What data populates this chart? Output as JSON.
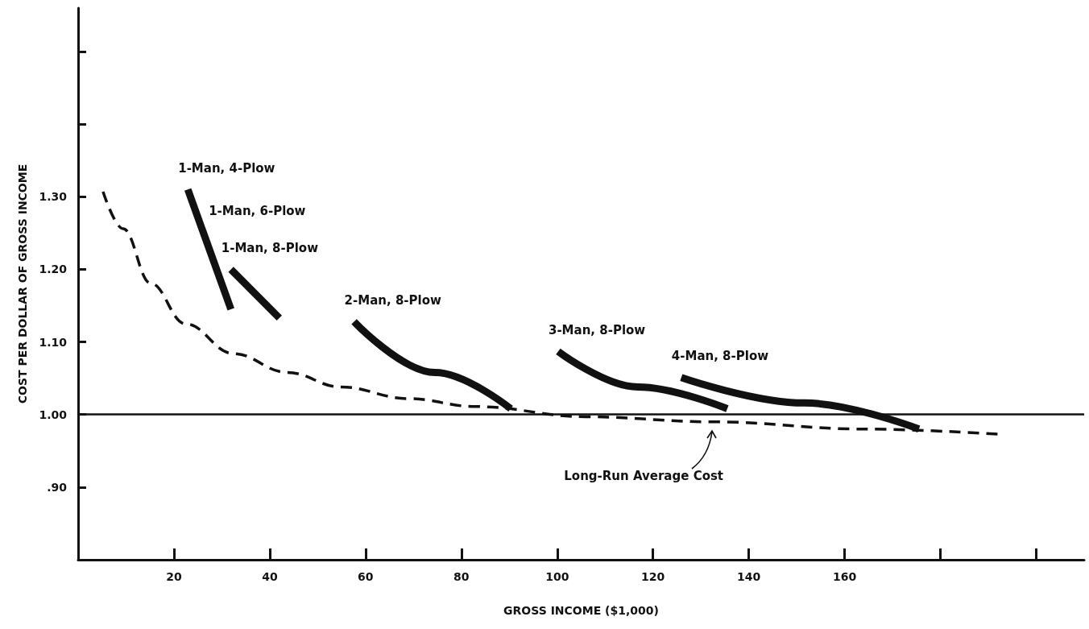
{
  "chart_data": {
    "type": "line",
    "xlabel": "GROSS INCOME ($1,000)",
    "ylabel": "COST PER DOLLAR OF GROSS INCOME",
    "xlim": [
      0,
      210
    ],
    "xticks": [
      20,
      40,
      60,
      80,
      100,
      120,
      140,
      160,
      {
        "value": 180,
        "label": null
      },
      {
        "value": 200,
        "label": null
      }
    ],
    "ylim": [
      0.8,
      1.56
    ],
    "yticks": [
      {
        "value": 0.9,
        "label": ".90"
      },
      {
        "value": 1.0,
        "label": "1.00"
      },
      {
        "value": 1.1,
        "label": "1.10"
      },
      {
        "value": 1.2,
        "label": "1.20"
      },
      {
        "value": 1.3,
        "label": "1.30"
      },
      {
        "value": 1.4,
        "label": null
      },
      {
        "value": 1.5,
        "label": null
      }
    ],
    "grid": false,
    "legend": false,
    "marker": "none",
    "series": [
      {
        "name": "1-Man, 4-Plow",
        "color": "#111111",
        "line_style": "solid",
        "x": [
          22.9,
          31.9
        ],
        "values": [
          1.31,
          1.145
        ]
      },
      {
        "name": "1-Man, 8-Plow",
        "color": "#111111",
        "line_style": "solid",
        "x": [
          31.9,
          42.0
        ],
        "values": [
          1.2,
          1.133
        ]
      },
      {
        "name": "2-Man, 8-Plow",
        "color": "#111111",
        "line_style": "solid",
        "x": [
          57.6,
          74.5,
          90.3
        ],
        "values": [
          1.128,
          1.058,
          1.008
        ]
      },
      {
        "name": "3-Man, 8-Plow",
        "color": "#111111",
        "line_style": "solid",
        "x": [
          100.2,
          116.8,
          135.5
        ],
        "values": [
          1.087,
          1.038,
          1.008
        ]
      },
      {
        "name": "4-Man, 8-Plow",
        "color": "#111111",
        "line_style": "solid",
        "x": [
          125.9,
          151.6,
          175.5
        ],
        "values": [
          1.051,
          1.016,
          0.98
        ]
      },
      {
        "color": "#111111",
        "line_style": "dashed",
        "x": [
          5.2,
          9.4,
          15.1,
          22.4,
          32.4,
          43.7,
          54.8,
          68.9,
          82.9,
          106,
          132.4,
          164,
          192.1
        ],
        "values": [
          1.307,
          1.256,
          1.181,
          1.125,
          1.084,
          1.058,
          1.038,
          1.022,
          1.011,
          0.997,
          0.99,
          0.98,
          0.973
        ]
      }
    ],
    "ref_lines": [
      {
        "axis": "y",
        "value": 1.0,
        "color": "#111111",
        "line_style": "solid"
      }
    ],
    "annotations": [
      "1-Man, 6-Plow",
      "Long-Run Average Cost"
    ]
  }
}
